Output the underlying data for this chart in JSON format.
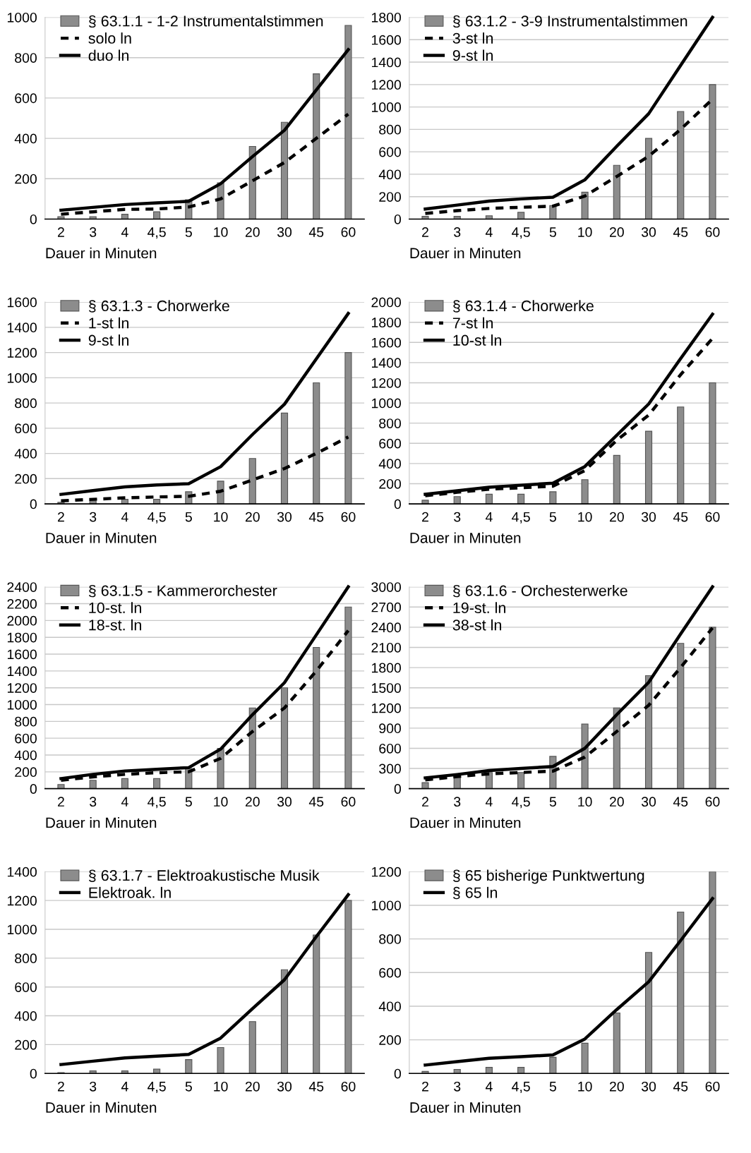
{
  "chart_data": [
    {
      "type": "bar",
      "categories": [
        "2",
        "3",
        "4",
        "4,5",
        "5",
        "10",
        "20",
        "30",
        "45",
        "60"
      ],
      "xlabel": "Dauer in Minuten",
      "ylim": [
        0,
        1000
      ],
      "yticks": [
        0,
        200,
        400,
        600,
        800,
        1000
      ],
      "grid": "y",
      "legend": "top left",
      "series": [
        {
          "name": "§ 63.1.1 - 1-2 Instrumentalstimmen",
          "color": "#8c8c8c",
          "values": [
            12,
            12,
            24,
            36,
            96,
            180,
            360,
            480,
            720,
            960
          ]
        },
        {
          "name": "solo ln",
          "type": "line",
          "color": "#000000",
          "line_style": "dashed",
          "values": [
            24,
            36,
            48,
            50,
            60,
            100,
            190,
            280,
            400,
            520
          ]
        },
        {
          "name": "duo ln",
          "type": "line",
          "color": "#000000",
          "line_style": "solid",
          "values": [
            44,
            58,
            72,
            80,
            88,
            175,
            310,
            440,
            640,
            840
          ]
        }
      ]
    },
    {
      "type": "bar",
      "categories": [
        "2",
        "3",
        "4",
        "4,5",
        "5",
        "10",
        "20",
        "30",
        "45",
        "60"
      ],
      "xlabel": "Dauer in Minuten",
      "ylim": [
        0,
        1800
      ],
      "yticks": [
        0,
        200,
        400,
        600,
        800,
        1000,
        1200,
        1400,
        1600,
        1800
      ],
      "grid": "y",
      "legend": "top left",
      "series": [
        {
          "name": "§ 63.1.2 - 3-9 Instrumentalstimmen",
          "color": "#8c8c8c",
          "values": [
            24,
            24,
            30,
            60,
            120,
            240,
            480,
            720,
            960,
            1200
          ]
        },
        {
          "name": "3-st ln",
          "type": "line",
          "color": "#000000",
          "line_style": "dashed",
          "values": [
            50,
            75,
            95,
            105,
            115,
            205,
            380,
            560,
            800,
            1070
          ]
        },
        {
          "name": "9-st ln",
          "type": "line",
          "color": "#000000",
          "line_style": "solid",
          "values": [
            90,
            125,
            160,
            180,
            195,
            350,
            650,
            940,
            1370,
            1800
          ]
        }
      ]
    },
    {
      "type": "bar",
      "categories": [
        "2",
        "3",
        "4",
        "4,5",
        "5",
        "10",
        "20",
        "30",
        "45",
        "60"
      ],
      "xlabel": "Dauer in Minuten",
      "ylim": [
        0,
        1600
      ],
      "yticks": [
        0,
        200,
        400,
        600,
        800,
        1000,
        1200,
        1400,
        1600
      ],
      "grid": "y",
      "legend": "top left",
      "series": [
        {
          "name": "§ 63.1.3 - Chorwerke",
          "color": "#8c8c8c",
          "values": [
            12,
            24,
            36,
            36,
            96,
            180,
            360,
            720,
            960,
            1200
          ]
        },
        {
          "name": "1-st ln",
          "type": "line",
          "color": "#000000",
          "line_style": "dashed",
          "values": [
            24,
            36,
            48,
            55,
            60,
            100,
            190,
            280,
            400,
            530
          ]
        },
        {
          "name": "9-st ln",
          "type": "line",
          "color": "#000000",
          "line_style": "solid",
          "values": [
            75,
            105,
            135,
            150,
            160,
            295,
            550,
            790,
            1150,
            1510
          ]
        }
      ]
    },
    {
      "type": "bar",
      "categories": [
        "2",
        "3",
        "4",
        "4,5",
        "5",
        "10",
        "20",
        "30",
        "45",
        "60"
      ],
      "xlabel": "Dauer in Minuten",
      "ylim": [
        0,
        2000
      ],
      "yticks": [
        0,
        200,
        400,
        600,
        800,
        1000,
        1200,
        1400,
        1600,
        1800,
        2000
      ],
      "grid": "y",
      "legend": "top left",
      "series": [
        {
          "name": "§ 63.1.4 - Chorwerke",
          "color": "#8c8c8c",
          "values": [
            36,
            72,
            96,
            96,
            120,
            240,
            480,
            720,
            960,
            1200
          ]
        },
        {
          "name": "7-st ln",
          "type": "line",
          "color": "#000000",
          "line_style": "dashed",
          "values": [
            80,
            115,
            145,
            160,
            175,
            330,
            630,
            880,
            1280,
            1640
          ]
        },
        {
          "name": "10-st ln",
          "type": "line",
          "color": "#000000",
          "line_style": "solid",
          "values": [
            95,
            130,
            165,
            185,
            205,
            370,
            680,
            990,
            1440,
            1880
          ]
        }
      ]
    },
    {
      "type": "bar",
      "categories": [
        "2",
        "3",
        "4",
        "4,5",
        "5",
        "10",
        "20",
        "30",
        "45",
        "60"
      ],
      "xlabel": "Dauer in Minuten",
      "ylim": [
        0,
        2400
      ],
      "yticks": [
        0,
        200,
        400,
        600,
        800,
        1000,
        1200,
        1400,
        1600,
        1800,
        2000,
        2200,
        2400
      ],
      "grid": "y",
      "legend": "top left",
      "series": [
        {
          "name": "§ 63.1.5 - Kammerorchester",
          "color": "#8c8c8c",
          "values": [
            50,
            100,
            120,
            120,
            240,
            480,
            960,
            1200,
            1680,
            2160
          ]
        },
        {
          "name": "10-st. ln",
          "type": "line",
          "color": "#000000",
          "line_style": "dashed",
          "values": [
            100,
            140,
            170,
            190,
            200,
            360,
            680,
            960,
            1400,
            1880
          ]
        },
        {
          "name": "18-st. ln",
          "type": "line",
          "color": "#000000",
          "line_style": "solid",
          "values": [
            120,
            170,
            210,
            230,
            250,
            470,
            880,
            1260,
            1830,
            2400
          ]
        }
      ]
    },
    {
      "type": "bar",
      "categories": [
        "2",
        "3",
        "4",
        "4,5",
        "5",
        "10",
        "20",
        "30",
        "45",
        "60"
      ],
      "xlabel": "Dauer in Minuten",
      "ylim": [
        0,
        3000
      ],
      "yticks": [
        0,
        300,
        600,
        900,
        1200,
        1500,
        1800,
        2100,
        2400,
        2700,
        3000
      ],
      "grid": "y",
      "legend": "top left",
      "series": [
        {
          "name": "§ 63.1.6 - Orchesterwerke",
          "color": "#8c8c8c",
          "values": [
            90,
            180,
            240,
            240,
            480,
            960,
            1200,
            1680,
            2160,
            2400
          ]
        },
        {
          "name": "19-st. ln",
          "type": "line",
          "color": "#000000",
          "line_style": "dashed",
          "values": [
            130,
            180,
            220,
            240,
            260,
            470,
            850,
            1240,
            1800,
            2390
          ]
        },
        {
          "name": "38-st ln",
          "type": "line",
          "color": "#000000",
          "line_style": "solid",
          "values": [
            160,
            210,
            270,
            300,
            330,
            600,
            1100,
            1580,
            2300,
            3000
          ]
        }
      ]
    },
    {
      "type": "bar",
      "categories": [
        "2",
        "3",
        "4",
        "4,5",
        "5",
        "10",
        "20",
        "30",
        "45",
        "60"
      ],
      "xlabel": "Dauer in Minuten",
      "ylim": [
        0,
        1400
      ],
      "yticks": [
        0,
        200,
        400,
        600,
        800,
        1000,
        1200,
        1400
      ],
      "grid": "y",
      "legend": "top left",
      "series": [
        {
          "name": "§ 63.1.7 - Elektroakustische Musik",
          "color": "#8c8c8c",
          "values": [
            6,
            18,
            18,
            30,
            96,
            180,
            360,
            720,
            960,
            1200
          ]
        },
        {
          "name": "Elektroak. ln",
          "type": "line",
          "color": "#000000",
          "line_style": "solid",
          "values": [
            62,
            85,
            108,
            120,
            132,
            245,
            450,
            650,
            950,
            1240
          ]
        }
      ]
    },
    {
      "type": "bar",
      "categories": [
        "2",
        "3",
        "4",
        "4,5",
        "5",
        "10",
        "20",
        "30",
        "45",
        "60"
      ],
      "xlabel": "Dauer in Minuten",
      "ylim": [
        0,
        1200
      ],
      "yticks": [
        0,
        200,
        400,
        600,
        800,
        1000,
        1200
      ],
      "grid": "y",
      "legend": "top left",
      "series": [
        {
          "name": "§ 65 bisherige Punktwertung",
          "color": "#8c8c8c",
          "values": [
            12,
            24,
            36,
            36,
            96,
            180,
            360,
            720,
            960,
            1200
          ]
        },
        {
          "name": "§ 65 ln",
          "type": "line",
          "color": "#000000",
          "line_style": "solid",
          "values": [
            50,
            70,
            90,
            100,
            110,
            205,
            380,
            545,
            790,
            1040
          ]
        }
      ]
    }
  ]
}
